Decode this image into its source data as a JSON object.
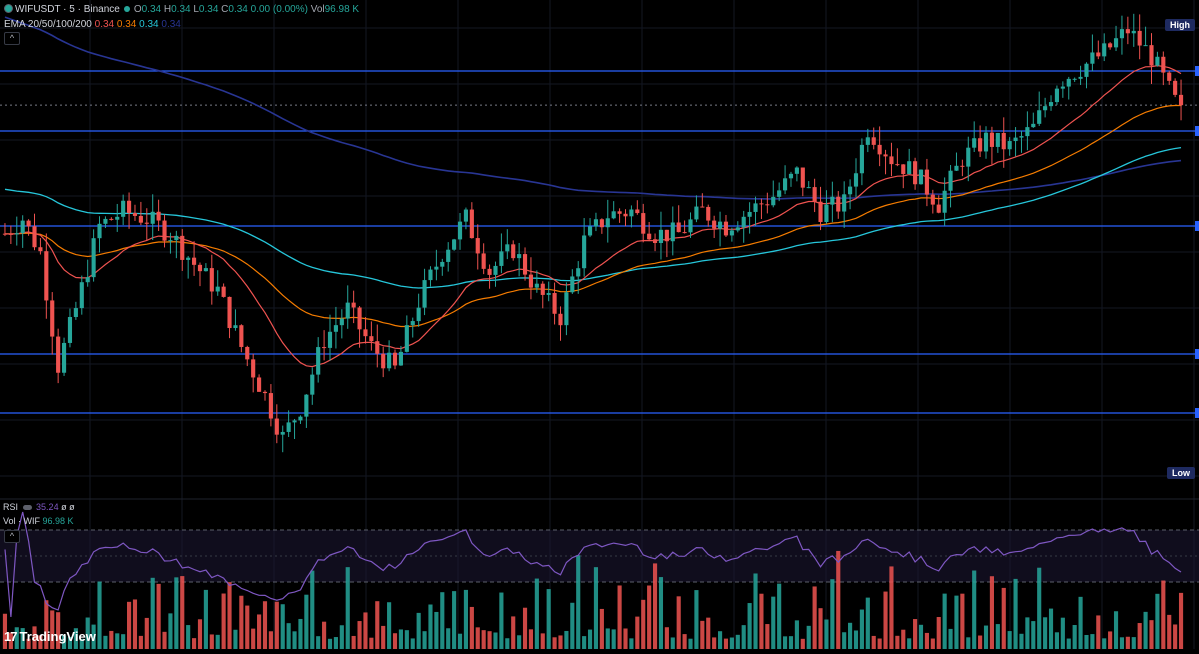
{
  "header": {
    "symbol": "WIFUSDT",
    "interval": "5",
    "exchange": "Binance",
    "title": "WIFUSDT · 5 · Binance",
    "ohlc": {
      "o_label": "O",
      "o": "0.34",
      "h_label": "H",
      "h": "0.34",
      "l_label": "L",
      "l": "0.34",
      "c_label": "C",
      "c": "0.34",
      "change": "0.00 (0.00%)",
      "vol_label": "Vol",
      "vol": "96.98 K"
    },
    "ema": {
      "label": "EMA 20/50/100/200",
      "v20": "0.34",
      "v50": "0.34",
      "v100": "0.34",
      "v200": "0.34"
    }
  },
  "rsi_legend": {
    "label": "RSI",
    "value": "35.24",
    "extra": "ø ø"
  },
  "vol_legend": {
    "label": "Vol · WIF",
    "value": "96.98 K"
  },
  "price_tags": {
    "high": "High",
    "low": "Low"
  },
  "collapse_icon": "^",
  "logo": {
    "text": "TradingView",
    "icon": "tradingview-logo"
  },
  "colors": {
    "up": "#26a69a",
    "down": "#ef5350",
    "ema20": "#ef5350",
    "ema50": "#f57c00",
    "ema100": "#26c6da",
    "ema200": "#283593",
    "level": "#2962ff",
    "rsi": "#7e57c2",
    "volume_up": "#26a69a",
    "volume_down": "#ef5350"
  },
  "chart_data": {
    "type": "candlestick",
    "series": [
      {
        "name": "WIFUSDT",
        "count": 200
      },
      {
        "name": "EMA 20"
      },
      {
        "name": "EMA 50"
      },
      {
        "name": "EMA 100"
      },
      {
        "name": "EMA 200"
      },
      {
        "name": "RSI"
      },
      {
        "name": "Vol · WIF"
      }
    ],
    "grid": true,
    "levels": [
      "level-1",
      "level-2",
      "level-3",
      "level-4",
      "level-5"
    ]
  }
}
